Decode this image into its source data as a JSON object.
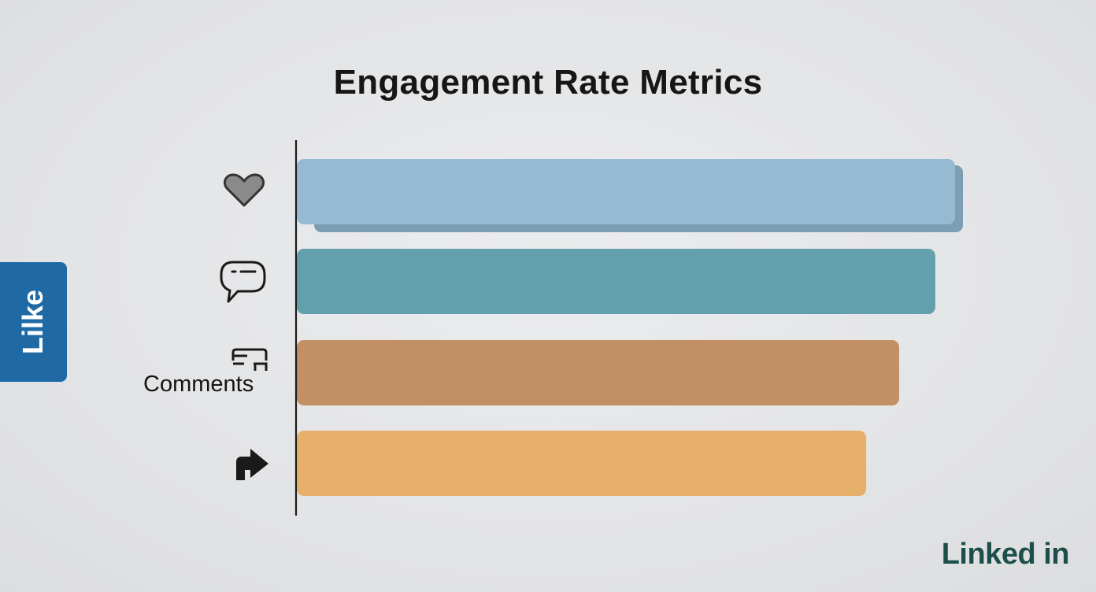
{
  "chart_data": {
    "type": "bar",
    "orientation": "horizontal",
    "title": "Engagement Rate Metrics",
    "categories": [
      "",
      "",
      "Comments",
      ""
    ],
    "category_icons": [
      "heart-icon",
      "speech-bubble-icon",
      "comments-icon",
      "share-arrow-icon"
    ],
    "values": [
      100,
      97,
      91.5,
      86.5
    ],
    "colors": [
      "#96bad2",
      "#62a0ac",
      "#c38f65",
      "#e6b06c"
    ],
    "xlim": [
      0,
      100
    ],
    "grid": false,
    "axis_tick_labels": false
  },
  "side_tab": {
    "label": "Lilke",
    "color": "#1f6aa5"
  },
  "logo": {
    "text": "Linked in",
    "color": "#1d4f4a"
  }
}
